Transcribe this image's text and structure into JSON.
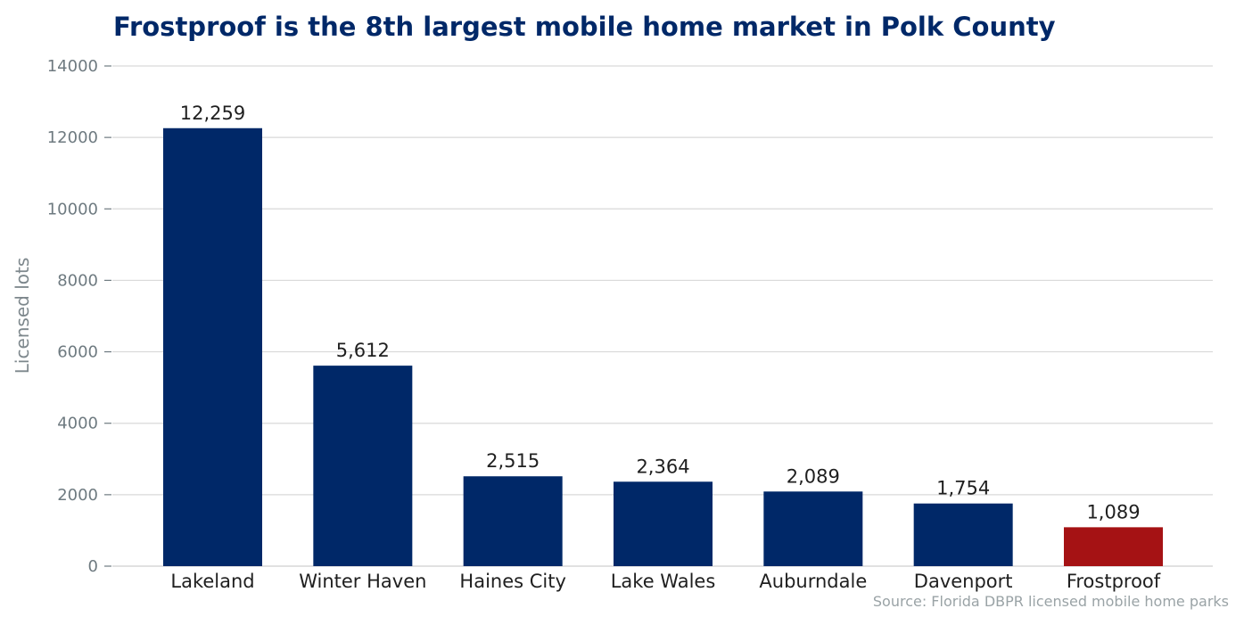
{
  "chart_data": {
    "type": "bar",
    "title": "Frostproof is the 8th largest mobile home market in Polk County",
    "xlabel": "",
    "ylabel": "Licensed lots",
    "ylim": [
      0,
      14000
    ],
    "yticks": [
      "0",
      "2000",
      "4000",
      "6000",
      "8000",
      "10000",
      "12000",
      "14000"
    ],
    "categories": [
      "Lakeland",
      "Winter Haven",
      "Haines City",
      "Lake Wales",
      "Auburndale",
      "Davenport",
      "Frostproof"
    ],
    "values": [
      12259,
      5612,
      2515,
      2364,
      2089,
      1754,
      1089
    ],
    "value_labels": [
      "12,259",
      "5,612",
      "2,515",
      "2,364",
      "2,089",
      "1,754",
      "1,089"
    ],
    "grid": true,
    "source": "Source: Florida DBPR licensed mobile home parks",
    "colors": {
      "bar": "#002868",
      "highlight": "#a51214",
      "highlight_category": "Frostproof",
      "grid": "#d9d9d9",
      "title": "#002868"
    }
  }
}
